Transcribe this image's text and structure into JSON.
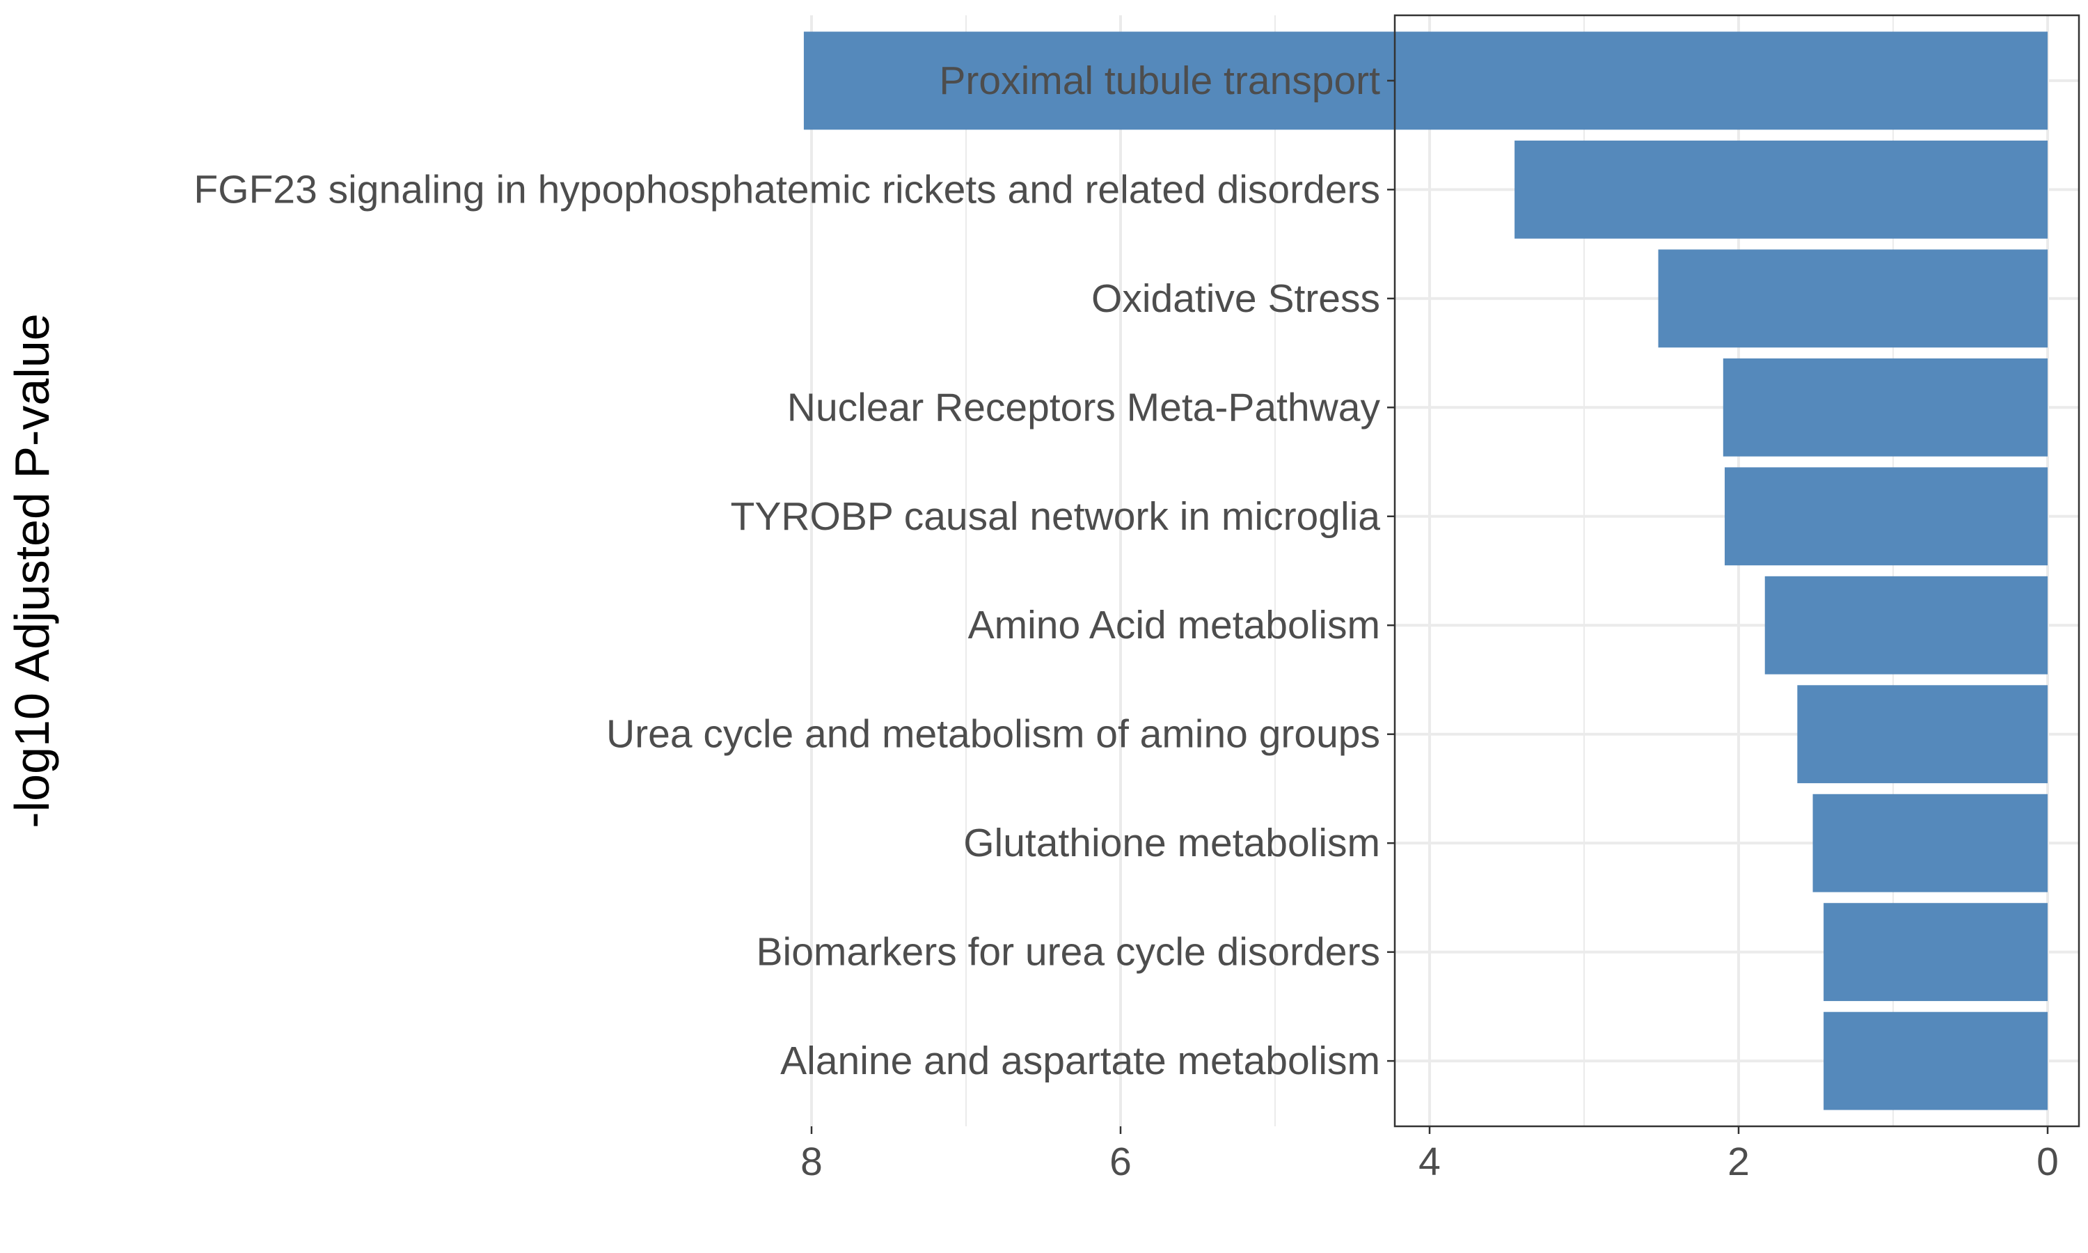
{
  "chart_data": {
    "type": "bar",
    "orientation": "horizontal",
    "x_reversed": true,
    "categories": [
      "Proximal tubule transport",
      "FGF23 signaling in hypophosphatemic rickets and related disorders",
      "Oxidative Stress",
      "Nuclear Receptors Meta-Pathway",
      "TYROBP causal network in microglia",
      "Amino Acid metabolism",
      "Urea cycle and metabolism of amino groups",
      "Glutathione metabolism",
      "Biomarkers for urea cycle disorders",
      "Alanine and aspartate metabolism"
    ],
    "values": [
      8.05,
      3.45,
      2.52,
      2.1,
      2.09,
      1.83,
      1.62,
      1.52,
      1.45,
      1.45
    ],
    "title": "",
    "xlabel": "",
    "ylabel": "-log10 Adjusted P-value",
    "xlim": [
      0,
      8.35
    ],
    "xticks": [
      "8",
      "6",
      "4",
      "2",
      "0"
    ],
    "xtick_values": [
      8,
      6,
      4,
      2,
      0
    ],
    "grid": true,
    "bar_color": "#5589BB",
    "grid_color": "#EBEBEB",
    "panel_border_color": "#333333",
    "label_color": "#4D4D4D"
  }
}
